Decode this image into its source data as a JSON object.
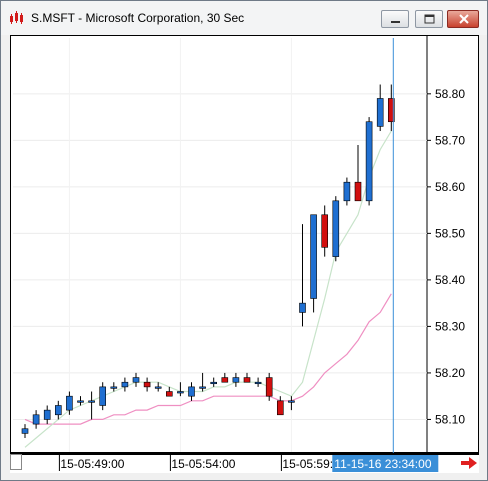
{
  "window": {
    "title": "S.MSFT - Microsoft Corporation, 30 Sec",
    "icon": "chart-app-icon",
    "controls": [
      "minimize-icon",
      "maximize-icon",
      "close-icon"
    ]
  },
  "chart_data": {
    "type": "candlestick",
    "y_ticks": [
      "58.80",
      "58.70",
      "58.60",
      "58.50",
      "58.40",
      "58.30",
      "58.20",
      "58.10"
    ],
    "y_tick_values": [
      58.8,
      58.7,
      58.6,
      58.5,
      58.4,
      58.3,
      58.2,
      58.1
    ],
    "ylim": [
      58.03,
      58.92
    ],
    "x_labels": [
      "15-05:49:00",
      "15-05:54:00",
      "15-05:59:00"
    ],
    "x_label_bar_index": [
      4,
      14,
      24
    ],
    "cursor_label": "11-15-16 23:34:00",
    "colors": {
      "up": "#1f6fd1",
      "down": "#d10f0f",
      "ma_fast": "#c7e3c9",
      "ma_slow": "#ef8fc2",
      "cursor": "#3a8fd8"
    },
    "candles": [
      {
        "o": 58.07,
        "h": 58.09,
        "l": 58.06,
        "c": 58.08
      },
      {
        "o": 58.09,
        "h": 58.12,
        "l": 58.08,
        "c": 58.11
      },
      {
        "o": 58.1,
        "h": 58.13,
        "l": 58.09,
        "c": 58.12
      },
      {
        "o": 58.11,
        "h": 58.14,
        "l": 58.1,
        "c": 58.13
      },
      {
        "o": 58.12,
        "h": 58.16,
        "l": 58.11,
        "c": 58.15
      },
      {
        "o": 58.14,
        "h": 58.15,
        "l": 58.13,
        "c": 58.14
      },
      {
        "o": 58.14,
        "h": 58.16,
        "l": 58.1,
        "c": 58.14
      },
      {
        "o": 58.13,
        "h": 58.18,
        "l": 58.12,
        "c": 58.17
      },
      {
        "o": 58.17,
        "h": 58.18,
        "l": 58.16,
        "c": 58.17
      },
      {
        "o": 58.17,
        "h": 58.19,
        "l": 58.16,
        "c": 58.18
      },
      {
        "o": 58.18,
        "h": 58.2,
        "l": 58.17,
        "c": 58.19
      },
      {
        "o": 58.18,
        "h": 58.19,
        "l": 58.16,
        "c": 58.17
      },
      {
        "o": 58.17,
        "h": 58.18,
        "l": 58.16,
        "c": 58.17
      },
      {
        "o": 58.16,
        "h": 58.17,
        "l": 58.15,
        "c": 58.15
      },
      {
        "o": 58.16,
        "h": 58.18,
        "l": 58.15,
        "c": 58.16
      },
      {
        "o": 58.15,
        "h": 58.18,
        "l": 58.14,
        "c": 58.17
      },
      {
        "o": 58.17,
        "h": 58.2,
        "l": 58.16,
        "c": 58.17
      },
      {
        "o": 58.18,
        "h": 58.19,
        "l": 58.17,
        "c": 58.18
      },
      {
        "o": 58.19,
        "h": 58.2,
        "l": 58.18,
        "c": 58.18
      },
      {
        "o": 58.18,
        "h": 58.2,
        "l": 58.17,
        "c": 58.19
      },
      {
        "o": 58.19,
        "h": 58.2,
        "l": 58.18,
        "c": 58.18
      },
      {
        "o": 58.18,
        "h": 58.19,
        "l": 58.17,
        "c": 58.18
      },
      {
        "o": 58.19,
        "h": 58.2,
        "l": 58.14,
        "c": 58.15
      },
      {
        "o": 58.14,
        "h": 58.15,
        "l": 58.11,
        "c": 58.11
      },
      {
        "o": 58.14,
        "h": 58.15,
        "l": 58.12,
        "c": 58.14
      },
      {
        "o": 58.33,
        "h": 58.52,
        "l": 58.3,
        "c": 58.35
      },
      {
        "o": 58.36,
        "h": 58.54,
        "l": 58.33,
        "c": 58.54
      },
      {
        "o": 58.54,
        "h": 58.56,
        "l": 58.45,
        "c": 58.47
      },
      {
        "o": 58.45,
        "h": 58.58,
        "l": 58.44,
        "c": 58.57
      },
      {
        "o": 58.57,
        "h": 58.62,
        "l": 58.56,
        "c": 58.61
      },
      {
        "o": 58.61,
        "h": 58.69,
        "l": 58.57,
        "c": 58.57
      },
      {
        "o": 58.57,
        "h": 58.75,
        "l": 58.56,
        "c": 58.74
      },
      {
        "o": 58.73,
        "h": 58.82,
        "l": 58.72,
        "c": 58.79
      },
      {
        "o": 58.79,
        "h": 58.82,
        "l": 58.72,
        "c": 58.74
      }
    ],
    "ma_fast": [
      58.04,
      58.06,
      58.08,
      58.1,
      58.12,
      58.13,
      58.14,
      58.15,
      58.16,
      58.17,
      58.18,
      58.18,
      58.18,
      58.17,
      58.16,
      58.16,
      58.16,
      58.17,
      58.17,
      58.18,
      58.18,
      58.18,
      58.17,
      58.16,
      58.15,
      58.18,
      58.27,
      58.36,
      58.46,
      58.5,
      58.54,
      58.62,
      58.68,
      58.72
    ],
    "ma_slow": [
      58.1,
      58.09,
      58.09,
      58.09,
      58.09,
      58.09,
      58.1,
      58.1,
      58.11,
      58.11,
      58.12,
      58.12,
      58.13,
      58.13,
      58.13,
      58.14,
      58.14,
      58.15,
      58.15,
      58.15,
      58.15,
      58.15,
      58.15,
      58.14,
      58.14,
      58.15,
      58.17,
      58.2,
      58.22,
      58.24,
      58.27,
      58.31,
      58.33,
      58.37
    ]
  }
}
